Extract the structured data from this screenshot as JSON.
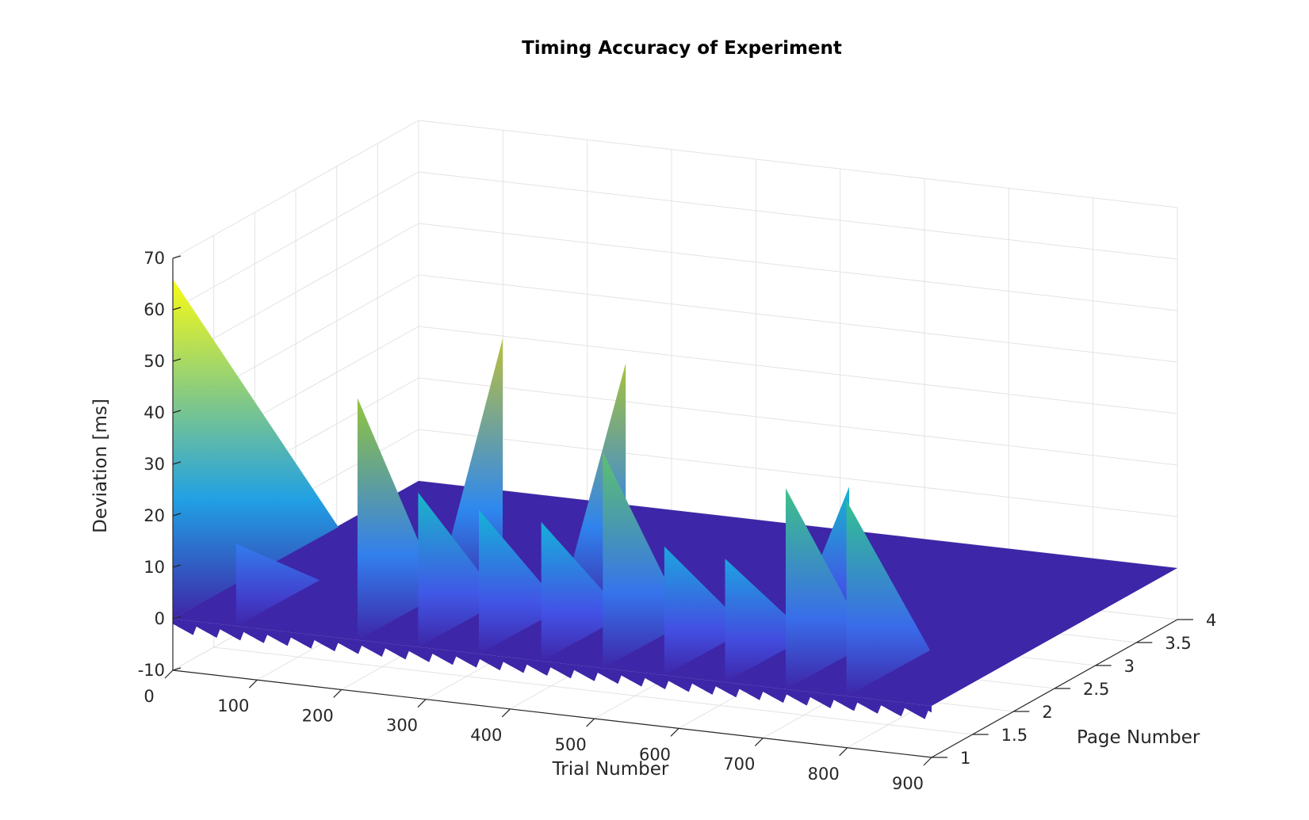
{
  "chart_data": {
    "type": "surface",
    "title": "Timing Accuracy of Experiment",
    "xlabel": "Trial Number",
    "ylabel": "Page Number",
    "zlabel": "Deviation [ms]",
    "xlim": [
      0,
      900
    ],
    "ylim": [
      1,
      4
    ],
    "zlim": [
      -10,
      70
    ],
    "xticks": [
      "0",
      "100",
      "200",
      "300",
      "400",
      "500",
      "600",
      "700",
      "800",
      "900"
    ],
    "yticks": [
      "1",
      "1.5",
      "2",
      "2.5",
      "3",
      "3.5",
      "4"
    ],
    "zticks": [
      "-10",
      "0",
      "10",
      "20",
      "30",
      "40",
      "50",
      "60",
      "70"
    ],
    "grid": true,
    "colormap": "parula",
    "colors": [
      "#3E26A8",
      "#4352E6",
      "#2C8EF0",
      "#13B5D6",
      "#30C194",
      "#95C43B",
      "#F1B93D",
      "#F9FB15"
    ],
    "baseline_ms": 0,
    "page_levels": [
      1,
      2,
      3,
      4
    ],
    "spikes": [
      {
        "trial": 0,
        "page": 1,
        "peak_ms": 66,
        "end_page": 3
      },
      {
        "trial": 75,
        "page": 1,
        "peak_ms": 16,
        "end_page": 2
      },
      {
        "trial": 219,
        "page": 1,
        "peak_ms": 47,
        "end_page": 2
      },
      {
        "trial": 291,
        "page": 1,
        "peak_ms": 30,
        "end_page": 2
      },
      {
        "trial": 294,
        "page": 2,
        "peak_ms": 51,
        "end_page": 1
      },
      {
        "trial": 363,
        "page": 1,
        "peak_ms": 28,
        "end_page": 2
      },
      {
        "trial": 437,
        "page": 1,
        "peak_ms": 27,
        "end_page": 2
      },
      {
        "trial": 440,
        "page": 2,
        "peak_ms": 49,
        "end_page": 1
      },
      {
        "trial": 510,
        "page": 1,
        "peak_ms": 42,
        "end_page": 2
      },
      {
        "trial": 583,
        "page": 1,
        "peak_ms": 25,
        "end_page": 2
      },
      {
        "trial": 655,
        "page": 1,
        "peak_ms": 24,
        "end_page": 2
      },
      {
        "trial": 705,
        "page": 2,
        "peak_ms": 30,
        "end_page": 1
      },
      {
        "trial": 727,
        "page": 1,
        "peak_ms": 39,
        "end_page": 2
      },
      {
        "trial": 799,
        "page": 1,
        "peak_ms": 38,
        "end_page": 2
      }
    ]
  }
}
